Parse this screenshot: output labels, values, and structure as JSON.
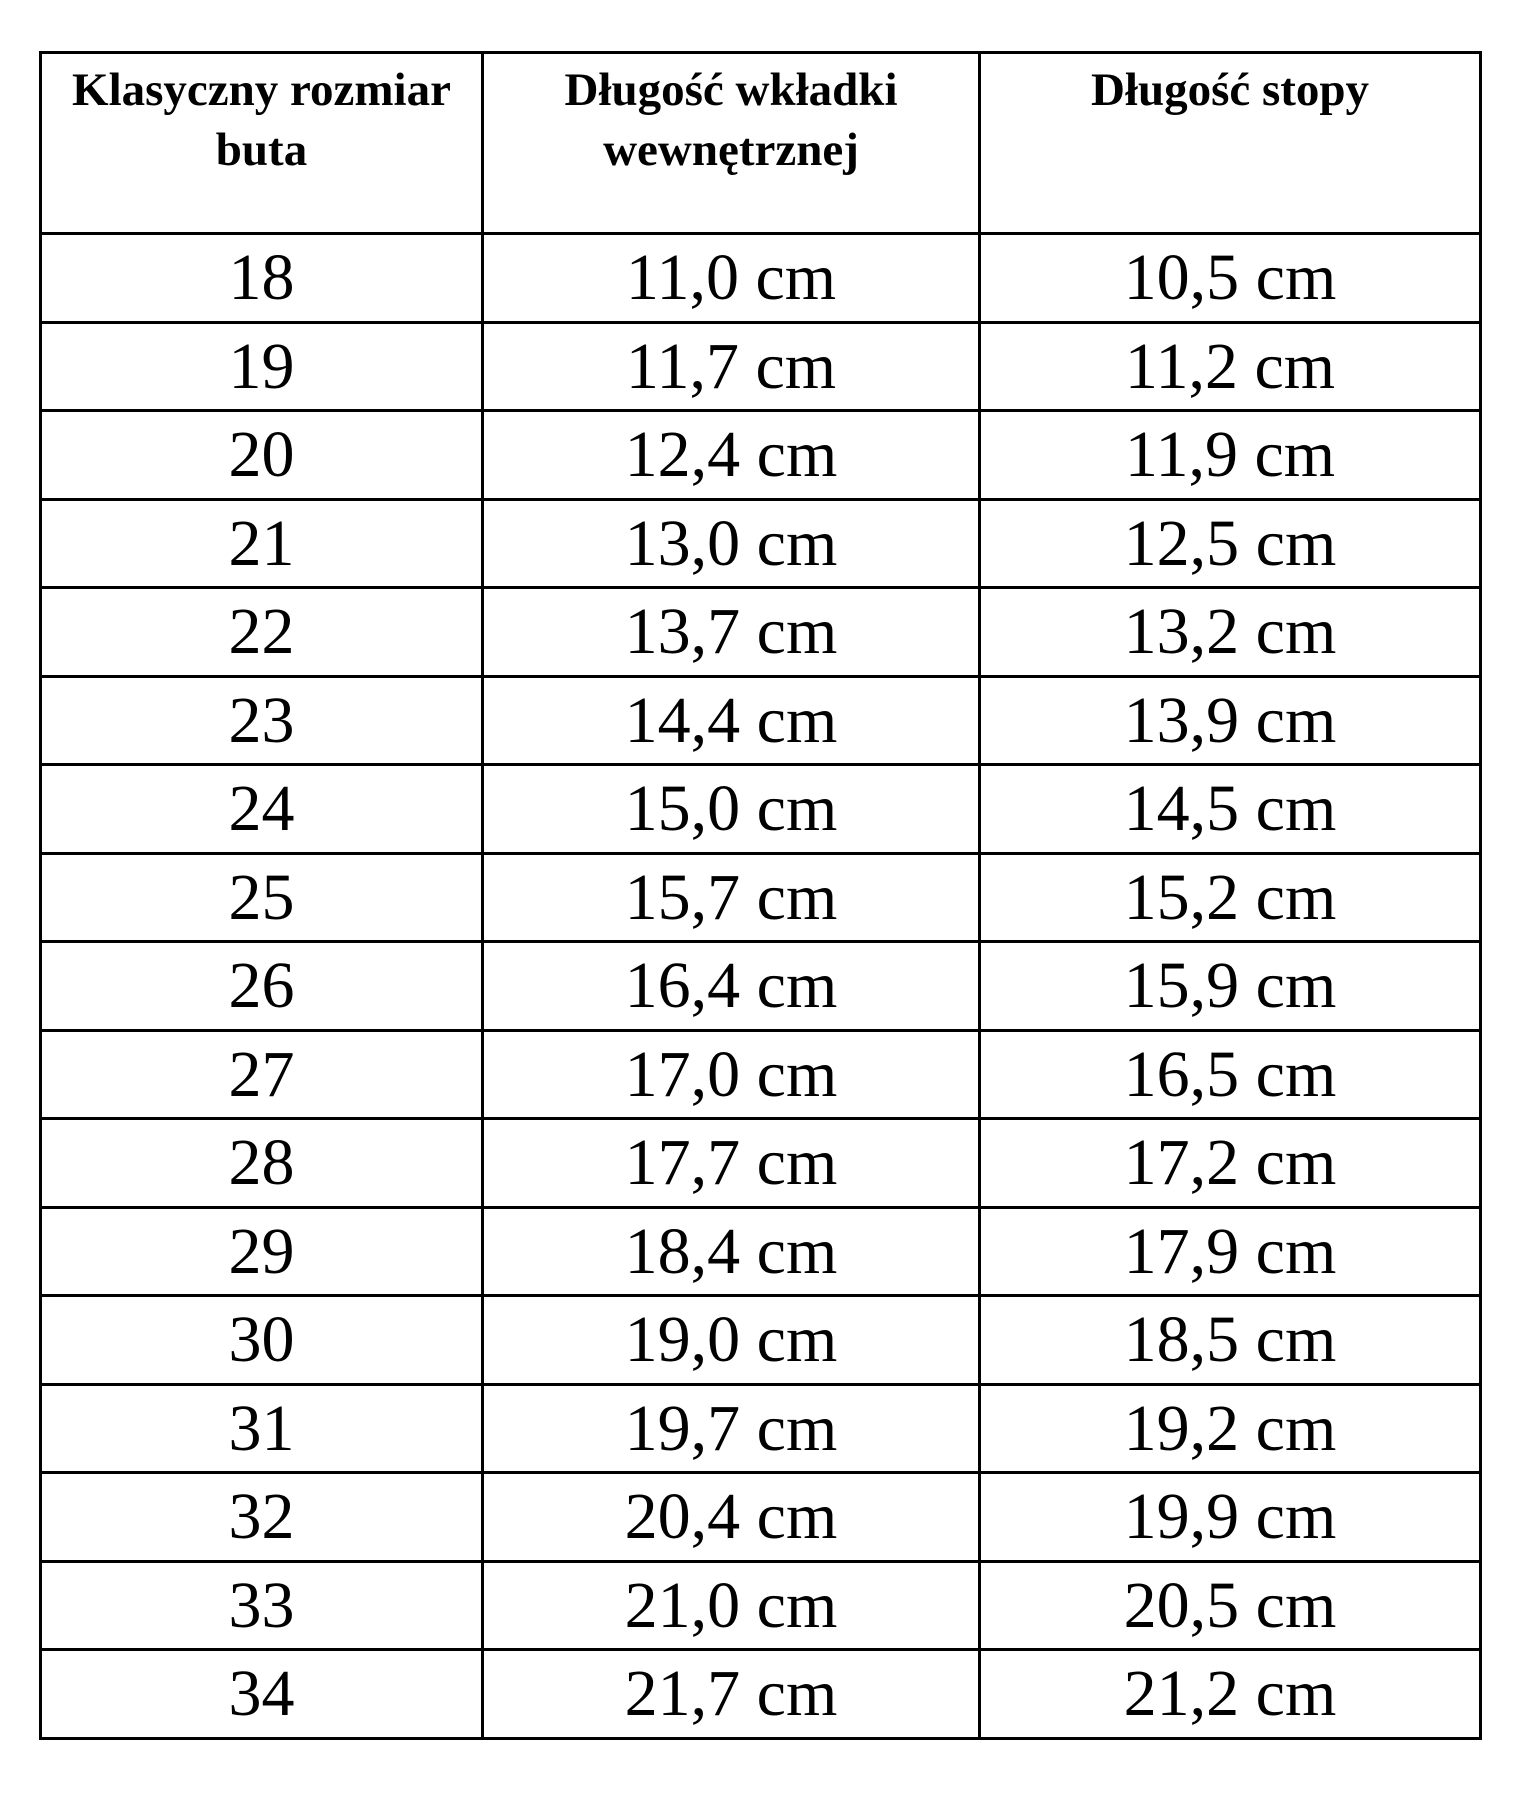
{
  "headers": [
    "Klasyczny rozmiar buta",
    "Długość wkładki wewnętrznej",
    "Długość stopy"
  ],
  "rows": [
    [
      "18",
      "11,0 cm",
      "10,5 cm"
    ],
    [
      "19",
      "11,7 cm",
      "11,2 cm"
    ],
    [
      "20",
      "12,4 cm",
      "11,9 cm"
    ],
    [
      "21",
      "13,0 cm",
      "12,5 cm"
    ],
    [
      "22",
      "13,7 cm",
      "13,2 cm"
    ],
    [
      "23",
      "14,4 cm",
      "13,9 cm"
    ],
    [
      "24",
      "15,0 cm",
      "14,5 cm"
    ],
    [
      "25",
      "15,7 cm",
      "15,2 cm"
    ],
    [
      "26",
      "16,4 cm",
      "15,9 cm"
    ],
    [
      "27",
      "17,0 cm",
      "16,5 cm"
    ],
    [
      "28",
      "17,7 cm",
      "17,2 cm"
    ],
    [
      "29",
      "18,4 cm",
      "17,9 cm"
    ],
    [
      "30",
      "19,0 cm",
      "18,5 cm"
    ],
    [
      "31",
      "19,7 cm",
      "19,2 cm"
    ],
    [
      "32",
      "20,4 cm",
      "19,9 cm"
    ],
    [
      "33",
      "21,0 cm",
      "20,5 cm"
    ],
    [
      "34",
      "21,7 cm",
      "21,2 cm"
    ]
  ]
}
